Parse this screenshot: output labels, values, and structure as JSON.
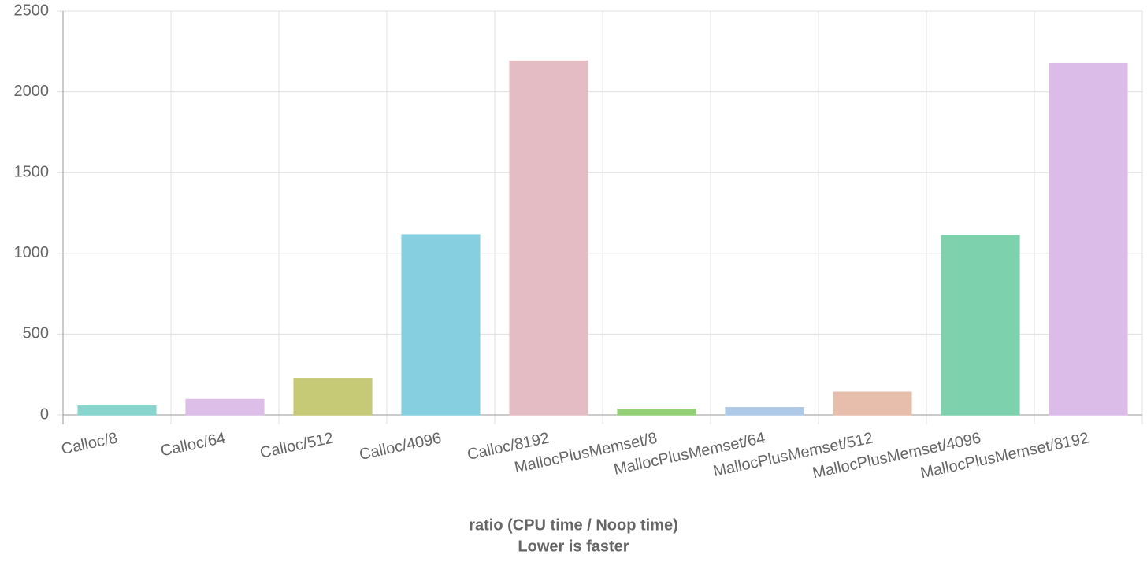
{
  "chart_data": {
    "type": "bar",
    "title": "ratio (CPU time / Noop time)",
    "subtitle": "Lower is faster",
    "categories": [
      "Calloc/8",
      "Calloc/64",
      "Calloc/512",
      "Calloc/4096",
      "Calloc/8192",
      "MallocPlusMemset/8",
      "MallocPlusMemset/64",
      "MallocPlusMemset/512",
      "MallocPlusMemset/4096",
      "MallocPlusMemset/8192"
    ],
    "values": [
      55,
      95,
      225,
      1115,
      2190,
      35,
      45,
      140,
      1110,
      2175
    ],
    "colors": [
      "#8fe0d8",
      "#e8c8f4",
      "#d0d47c",
      "#8ddaec",
      "#f0c6cd",
      "#9cdc7c",
      "#b8d4f4",
      "#f2c8b4",
      "#84dcb6",
      "#e6c6f4"
    ],
    "ylim": [
      0,
      2500
    ],
    "yticks": [
      0,
      500,
      1000,
      1500,
      2000,
      2500
    ],
    "grid": true
  }
}
